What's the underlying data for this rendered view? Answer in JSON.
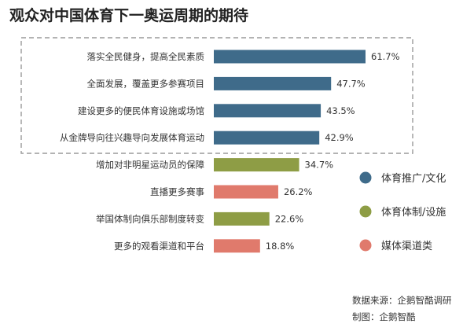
{
  "title": "观众对中国体育下一奥运周期的期待",
  "source": "数据来源：企鹅智酷调研",
  "credit": "制图：企鹅智酷",
  "colors": {
    "culture": "#3f6b8a",
    "system": "#8e9d45",
    "media": "#e07a6c",
    "dashed_box": "#9a9a9a"
  },
  "legend": [
    {
      "key": "culture",
      "label": "体育推广/文化"
    },
    {
      "key": "system",
      "label": "体育体制/设施"
    },
    {
      "key": "media",
      "label": "媒体渠道类"
    }
  ],
  "chart_data": {
    "type": "bar",
    "orientation": "horizontal",
    "title": "观众对中国体育下一奥运周期的期待",
    "unit": "%",
    "xlim": [
      0,
      65
    ],
    "categories": [
      "落实全民健身，提高全民素质",
      "全面发展，覆盖更多参赛项目",
      "建设更多的便民体育设施或场馆",
      "从金牌导向往兴趣导向发展体育运动",
      "增加对非明星运动员的保障",
      "直播更多赛事",
      "举国体制向俱乐部制度转变",
      "更多的观看渠道和平台"
    ],
    "values": [
      61.7,
      47.7,
      43.5,
      42.9,
      34.7,
      26.2,
      22.6,
      18.8
    ],
    "value_labels": [
      "61.7%",
      "47.7%",
      "43.5%",
      "42.9%",
      "34.7%",
      "26.2%",
      "22.6%",
      "18.8%"
    ],
    "groups": [
      "culture",
      "culture",
      "culture",
      "culture",
      "system",
      "media",
      "system",
      "media"
    ],
    "highlighted_top_n": 4,
    "legend_position": "right"
  }
}
